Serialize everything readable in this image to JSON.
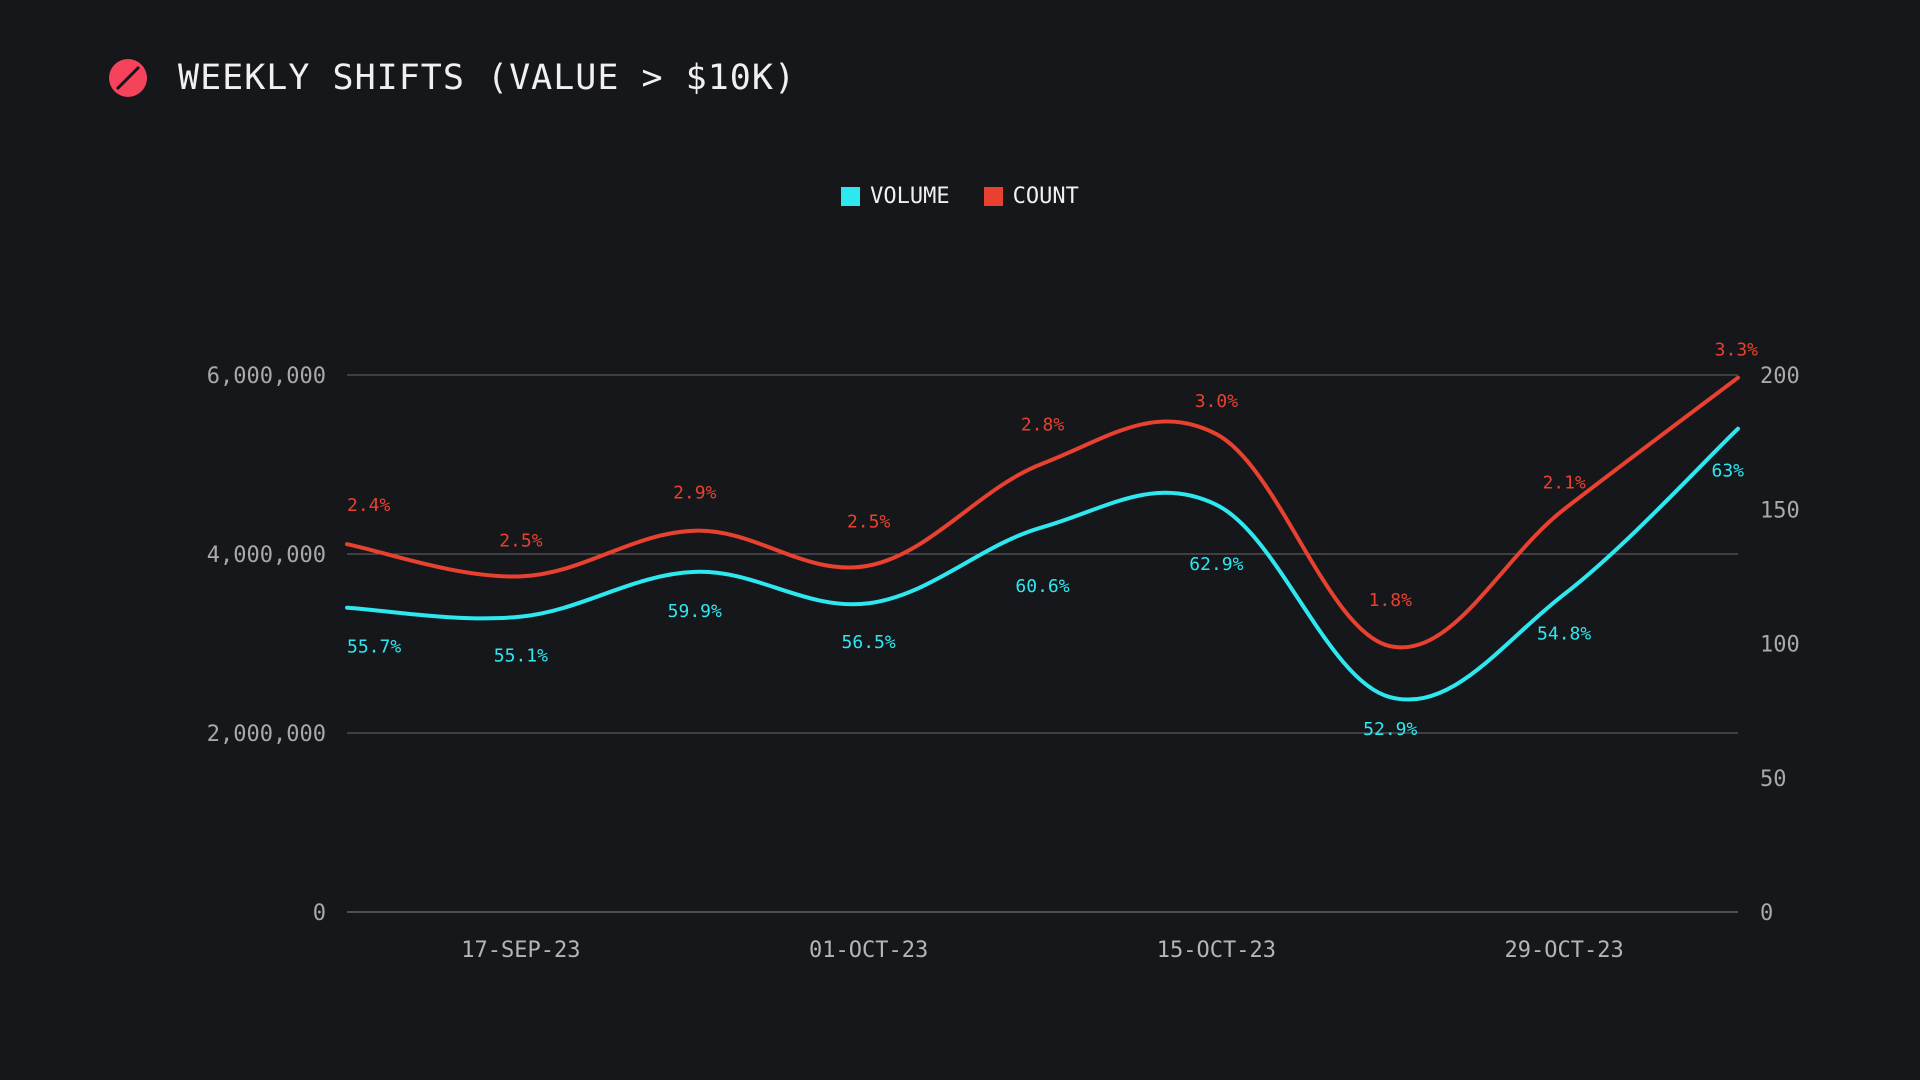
{
  "header": {
    "title": "WEEKLY SHIFTS (VALUE > $10K)",
    "logo_icon": "slashed-circle-icon",
    "logo_color": "#f5435b"
  },
  "legend": [
    {
      "label": "VOLUME",
      "color": "#2ee8f0"
    },
    {
      "label": "COUNT",
      "color": "#e8412f"
    }
  ],
  "chart_data": {
    "type": "line",
    "x": [
      "10-SEP-23",
      "17-SEP-23",
      "24-SEP-23",
      "01-OCT-23",
      "08-OCT-23",
      "15-OCT-23",
      "22-OCT-23",
      "29-OCT-23",
      "05-NOV-23"
    ],
    "x_tick_labels": [
      "17-SEP-23",
      "01-OCT-23",
      "15-OCT-23",
      "29-OCT-23"
    ],
    "series": [
      {
        "name": "VOLUME",
        "axis": "left",
        "color": "#2ee8f0",
        "values": [
          3400000,
          3300000,
          3800000,
          3450000,
          4300000,
          4550000,
          2400000,
          3550000,
          5400000
        ],
        "labels": [
          "55.7%",
          "55.1%",
          "59.9%",
          "56.5%",
          "60.6%",
          "62.9%",
          "52.9%",
          "54.8%",
          "63%"
        ]
      },
      {
        "name": "COUNT",
        "axis": "right",
        "color": "#e8412f",
        "values": [
          137,
          125,
          142,
          129,
          167,
          178,
          99,
          150,
          199
        ],
        "labels": [
          "2.4%",
          "2.5%",
          "2.9%",
          "2.5%",
          "2.8%",
          "3.0%",
          "1.8%",
          "2.1%",
          "3.3%"
        ]
      }
    ],
    "y_left": {
      "ylim": [
        0,
        6000000
      ],
      "ticks": [
        "0",
        "2,000,000",
        "4,000,000",
        "6,000,000"
      ],
      "tick_values": [
        0,
        2000000,
        4000000,
        6000000
      ]
    },
    "y_right": {
      "ylim": [
        0,
        200
      ],
      "ticks": [
        "0",
        "50",
        "100",
        "150",
        "200"
      ],
      "tick_values": [
        0,
        50,
        100,
        150,
        200
      ]
    },
    "grid": true,
    "legend_position": "top-center"
  }
}
